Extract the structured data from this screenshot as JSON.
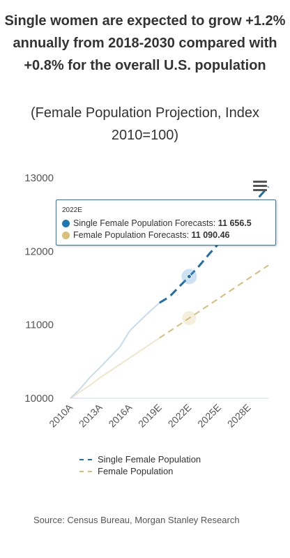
{
  "header": {
    "title": "Single women are expected to grow +1.2% annually from 2018-2030 compared with +0.8% for the overall U.S. population",
    "subtitle": "(Female Population Projection, Index 2010=100)"
  },
  "tooltip": {
    "category": "2022E",
    "rows": [
      {
        "label": "Single Female Population Forecasts:",
        "value": "11 656.5",
        "color": "#1f77b4"
      },
      {
        "label": "Female Population Forecasts:",
        "value": "11 090.46",
        "color": "#d8c078"
      }
    ]
  },
  "menu": {
    "icon": "hamburger-menu-icon"
  },
  "source": "Source: Census Bureau, Morgan Stanley Research",
  "chart_data": {
    "type": "line",
    "title": "Single women are expected to grow +1.2% annually from 2018-2030 compared with +0.8% for the overall U.S. population",
    "subtitle": "(Female Population Projection, Index 2010=100)",
    "x_tick_labels": [
      "2010A",
      "2013A",
      "2016A",
      "2019E",
      "2022E",
      "2025E",
      "2028E"
    ],
    "y_ticks": [
      10000,
      11000,
      12000,
      13000
    ],
    "ylim": [
      10000,
      13000
    ],
    "years": [
      2010,
      2011,
      2012,
      2013,
      2014,
      2015,
      2016,
      2017,
      2018,
      2019,
      2020,
      2021,
      2022,
      2023,
      2024,
      2025,
      2026,
      2027,
      2028,
      2029,
      2030
    ],
    "legend_position": "bottom",
    "grid": false,
    "series": [
      {
        "name": "Single Female Population",
        "color": "#1f6ea6",
        "actual_values": [
          10000,
          10130,
          10290,
          10420,
          10560,
          10700,
          10920,
          11050,
          11180,
          11300
        ],
        "forecast_values": [
          11300,
          11380,
          11520,
          11656.5,
          11800,
          11960,
          12110,
          12270,
          12420,
          12570,
          12730,
          12880
        ],
        "forecast_start_index": 9
      },
      {
        "name": "Female Population",
        "color": "#d4bd78",
        "actual_values": [
          10000,
          10090,
          10180,
          10280,
          10370,
          10460,
          10550,
          10640,
          10730,
          10820
        ],
        "forecast_values": [
          10820,
          10910,
          11000,
          11090.46,
          11180,
          11270,
          11360,
          11450,
          11540,
          11630,
          11720,
          11810
        ],
        "forecast_start_index": 9
      }
    ],
    "highlighted_category": "2022E"
  }
}
